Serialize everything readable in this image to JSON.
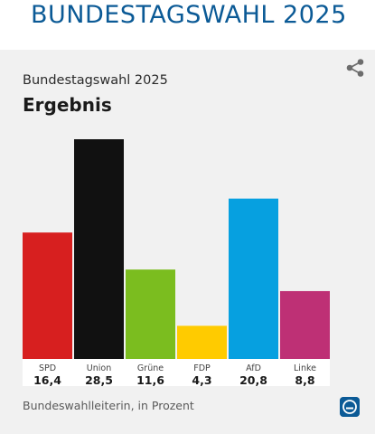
{
  "headline": "BUNDESTAGSWAHL 2025",
  "subtitle": "Bundestagswahl 2025",
  "title": "Ergebnis",
  "source": "Bundeswahlleiterin, in Prozent",
  "icons": {
    "share": "share-icon",
    "logo": "ard-logo"
  },
  "colors": {
    "headline": "#0b5a96",
    "card_background": "#f1f1f1"
  },
  "chart_data": {
    "type": "bar",
    "title": "Ergebnis",
    "xlabel": "",
    "ylabel": "",
    "ylim": [
      0,
      28.5
    ],
    "grid": false,
    "categories": [
      "SPD",
      "Union",
      "Grüne",
      "FDP",
      "AfD",
      "Linke"
    ],
    "values": [
      16.4,
      28.5,
      11.6,
      4.3,
      20.8,
      8.8
    ],
    "value_labels": [
      "16,4",
      "28,5",
      "11,6",
      "4,3",
      "20,8",
      "8,8"
    ],
    "colors": [
      "#d71f1f",
      "#111111",
      "#7bbd1f",
      "#ffcb00",
      "#06a0e0",
      "#be3075"
    ]
  }
}
